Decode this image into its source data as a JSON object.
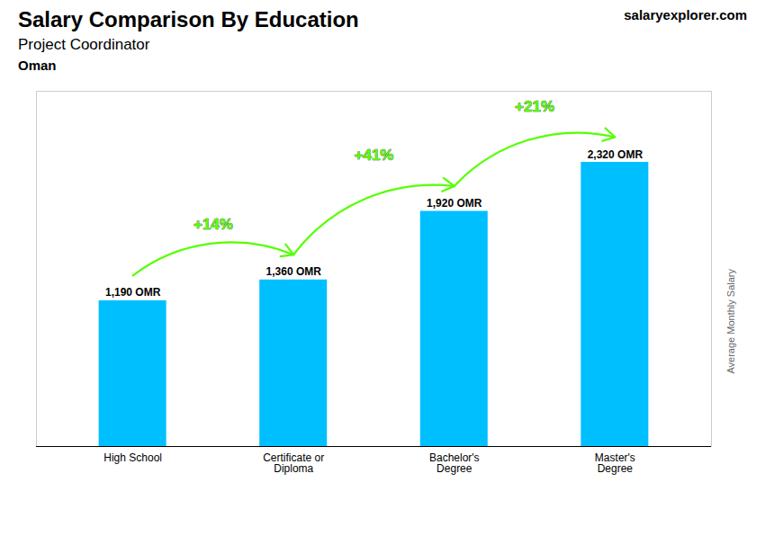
{
  "chart_data": {
    "type": "bar",
    "title": "Salary Comparison By Education",
    "subtitle": "Project Coordinator",
    "ylabel": "Average Monthly Salary",
    "categories": [
      "High School",
      "Certificate or\nDiploma",
      "Bachelor's\nDegree",
      "Master's\nDegree"
    ],
    "values": [
      1190,
      1360,
      1920,
      2320
    ],
    "value_labels": [
      "1,190 OMR",
      "1,360 OMR",
      "1,920 OMR",
      "2,320 OMR"
    ],
    "data_labels": true,
    "color": "#00bfff",
    "ylim": [
      0,
      2900
    ],
    "tick_labels": "x",
    "annotations": [
      {
        "text": "Oman"
      },
      {
        "text": "salaryexplorer.com"
      },
      {
        "text": "+14%",
        "from": "High School",
        "to": "Certificate or\nDiploma",
        "color": "#55ff00"
      },
      {
        "text": "+41%",
        "from": "Certificate or\nDiploma",
        "to": "Bachelor's\nDegree",
        "color": "#55ff00"
      },
      {
        "text": "+21%",
        "from": "Bachelor's\nDegree",
        "to": "Master's\nDegree",
        "color": "#55ff00"
      }
    ]
  }
}
